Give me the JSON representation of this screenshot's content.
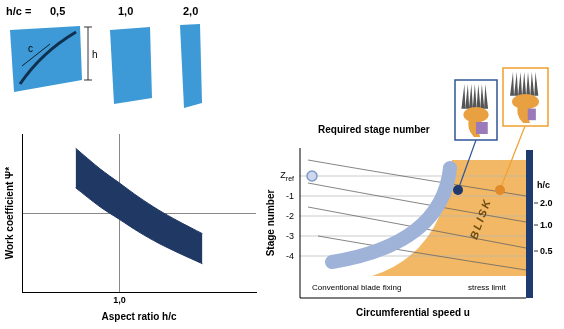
{
  "chart_data": {
    "type": "band",
    "xlabel": "Aspect ratio h/c",
    "ylabel": "Work coefficient Ψ*",
    "x": [
      0.55,
      0.8,
      1.0,
      1.2,
      1.4,
      1.6,
      1.85
    ],
    "upper": [
      0.91,
      0.78,
      0.69,
      0.6,
      0.52,
      0.45,
      0.37
    ],
    "lower": [
      0.66,
      0.54,
      0.46,
      0.38,
      0.31,
      0.25,
      0.18
    ],
    "color": "#203864",
    "xlim": [
      0,
      2.4
    ],
    "xticks": [
      {
        "value": 1,
        "label": "1,0"
      }
    ],
    "ylim": [
      0,
      1
    ],
    "yticks": [
      0.5
    ],
    "grid": true,
    "tick_labels": "x"
  },
  "diagram": {
    "blade_sketches": {
      "title_prefix": "h/c =",
      "ratios": [
        "0,5",
        "1,0",
        "2,0"
      ],
      "chord_label": "c",
      "height_label": "h"
    },
    "stage_chart": {
      "ylabel": "Stage number",
      "xlabel": "Circumferential speed u",
      "stage_ticks": [
        {
          "main": "Z",
          "sub": "ref"
        },
        "-1",
        "-2",
        "-3",
        "-4"
      ],
      "region_label": "BLISK",
      "conventional_label": "Conventional blade fixing",
      "limit_label": "stress limit",
      "callout": "Required stage number",
      "side_scale": {
        "title": "h/c",
        "ticks": [
          "2.0",
          "1.0",
          "0.5"
        ]
      }
    }
  }
}
